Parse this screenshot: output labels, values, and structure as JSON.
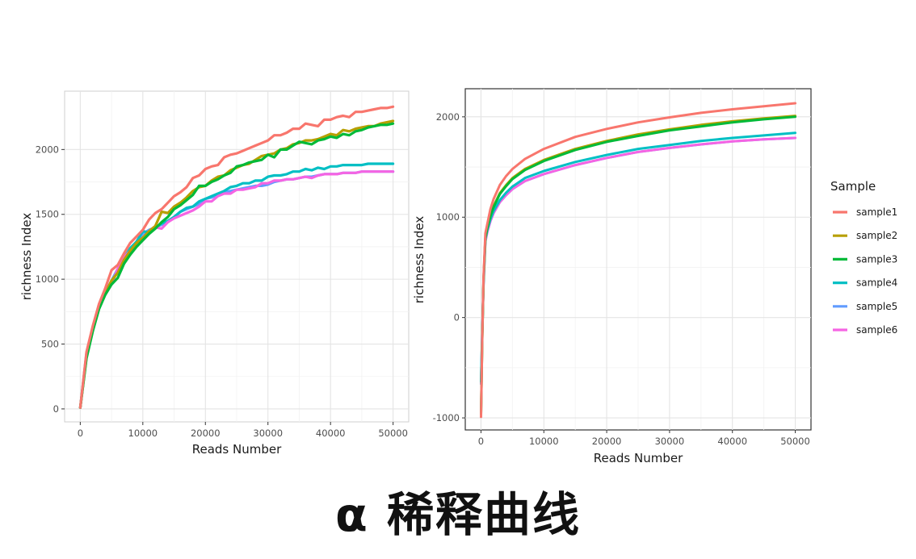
{
  "caption": "α 稀释曲线",
  "legend": {
    "title": "Sample",
    "items": [
      {
        "label": "sample1",
        "color": "#F8766D"
      },
      {
        "label": "sample2",
        "color": "#B79F00"
      },
      {
        "label": "sample3",
        "color": "#00BA38"
      },
      {
        "label": "sample4",
        "color": "#00BFC4"
      },
      {
        "label": "sample5",
        "color": "#619CFF"
      },
      {
        "label": "sample6",
        "color": "#F564E3"
      }
    ]
  },
  "chart_data": [
    {
      "type": "line",
      "xlabel": "Reads Number",
      "ylabel": "richness Index",
      "xlim": [
        -2500,
        52500
      ],
      "ylim": [
        -100,
        2450
      ],
      "xticks": [
        0,
        10000,
        20000,
        30000,
        40000,
        50000
      ],
      "xtick_labels": [
        "0",
        "10000",
        "20000",
        "30000",
        "40000",
        "50000"
      ],
      "yticks": [
        0,
        500,
        1000,
        1500,
        2000
      ],
      "ytick_labels": [
        "0",
        "500",
        "1000",
        "1500",
        "2000"
      ],
      "grid": true,
      "x": [
        0,
        1000,
        2000,
        3000,
        4000,
        5000,
        6000,
        7000,
        8000,
        9000,
        10000,
        11000,
        12000,
        13000,
        14000,
        15000,
        16000,
        17000,
        18000,
        19000,
        20000,
        21000,
        22000,
        23000,
        24000,
        25000,
        26000,
        27000,
        28000,
        29000,
        30000,
        31000,
        32000,
        33000,
        34000,
        35000,
        36000,
        37000,
        38000,
        39000,
        40000,
        41000,
        42000,
        43000,
        44000,
        45000,
        46000,
        47000,
        48000,
        49000,
        50000
      ],
      "series": [
        {
          "name": "sample1",
          "values": [
            10,
            440,
            640,
            810,
            930,
            1070,
            1110,
            1200,
            1280,
            1330,
            1380,
            1460,
            1510,
            1540,
            1590,
            1640,
            1670,
            1710,
            1780,
            1800,
            1850,
            1870,
            1880,
            1940,
            1960,
            1970,
            1990,
            2010,
            2030,
            2050,
            2070,
            2110,
            2110,
            2130,
            2160,
            2160,
            2200,
            2190,
            2180,
            2230,
            2230,
            2250,
            2260,
            2250,
            2290,
            2290,
            2300,
            2310,
            2320,
            2320,
            2330
          ]
        },
        {
          "name": "sample2",
          "values": [
            10,
            400,
            610,
            790,
            890,
            990,
            1050,
            1150,
            1220,
            1280,
            1320,
            1370,
            1410,
            1520,
            1510,
            1560,
            1590,
            1630,
            1680,
            1710,
            1720,
            1760,
            1790,
            1800,
            1840,
            1860,
            1880,
            1890,
            1920,
            1950,
            1960,
            1970,
            2000,
            2010,
            2040,
            2050,
            2070,
            2070,
            2080,
            2100,
            2120,
            2110,
            2150,
            2140,
            2160,
            2170,
            2180,
            2180,
            2200,
            2210,
            2220
          ]
        },
        {
          "name": "sample3",
          "values": [
            10,
            390,
            600,
            770,
            880,
            960,
            1010,
            1120,
            1190,
            1250,
            1300,
            1350,
            1390,
            1440,
            1480,
            1540,
            1570,
            1610,
            1650,
            1720,
            1720,
            1750,
            1770,
            1800,
            1820,
            1870,
            1880,
            1900,
            1910,
            1920,
            1960,
            1940,
            2000,
            2000,
            2030,
            2060,
            2050,
            2040,
            2070,
            2080,
            2100,
            2090,
            2120,
            2110,
            2140,
            2150,
            2170,
            2180,
            2190,
            2190,
            2200
          ]
        },
        {
          "name": "sample4",
          "values": [
            10,
            430,
            630,
            790,
            900,
            970,
            1070,
            1160,
            1240,
            1290,
            1370,
            1360,
            1400,
            1430,
            1450,
            1480,
            1520,
            1550,
            1560,
            1600,
            1620,
            1640,
            1660,
            1680,
            1710,
            1720,
            1740,
            1740,
            1760,
            1760,
            1790,
            1800,
            1800,
            1810,
            1830,
            1830,
            1850,
            1840,
            1860,
            1850,
            1870,
            1870,
            1880,
            1880,
            1880,
            1880,
            1890,
            1890,
            1890,
            1890,
            1890
          ]
        },
        {
          "name": "sample5",
          "values": [
            10,
            410,
            620,
            790,
            900,
            990,
            1080,
            1170,
            1230,
            1290,
            1350,
            1380,
            1400,
            1420,
            1440,
            1480,
            1520,
            1540,
            1560,
            1580,
            1620,
            1630,
            1650,
            1670,
            1680,
            1690,
            1700,
            1710,
            1720,
            1720,
            1730,
            1750,
            1760,
            1770,
            1770,
            1780,
            1790,
            1790,
            1800,
            1810,
            1810,
            1810,
            1820,
            1820,
            1820,
            1830,
            1830,
            1830,
            1830,
            1830,
            1830
          ]
        },
        {
          "name": "sample6",
          "values": [
            10,
            420,
            620,
            780,
            880,
            960,
            1080,
            1170,
            1220,
            1260,
            1300,
            1350,
            1400,
            1390,
            1440,
            1470,
            1490,
            1510,
            1530,
            1560,
            1600,
            1600,
            1640,
            1660,
            1660,
            1690,
            1690,
            1700,
            1710,
            1740,
            1740,
            1760,
            1760,
            1770,
            1770,
            1780,
            1790,
            1780,
            1800,
            1810,
            1810,
            1810,
            1820,
            1820,
            1820,
            1830,
            1830,
            1830,
            1830,
            1830,
            1830
          ]
        }
      ]
    },
    {
      "type": "line",
      "xlabel": "Reads Number",
      "ylabel": "richness Index",
      "xlim": [
        -2500,
        52500
      ],
      "ylim": [
        -1120,
        2280
      ],
      "xticks": [
        0,
        10000,
        20000,
        30000,
        40000,
        50000
      ],
      "xtick_labels": [
        "0",
        "10000",
        "20000",
        "30000",
        "40000",
        "50000"
      ],
      "yticks": [
        -1000,
        0,
        1000,
        2000
      ],
      "ytick_labels": [
        "-1000",
        "0",
        "1000",
        "2000"
      ],
      "grid": true,
      "x": [
        0,
        200,
        400,
        700,
        1000,
        1500,
        2000,
        3000,
        4000,
        5000,
        7000,
        10000,
        15000,
        20000,
        25000,
        30000,
        35000,
        40000,
        45000,
        50000
      ],
      "series": [
        {
          "name": "sample1",
          "values": [
            -990,
            -200,
            400,
            840,
            930,
            1080,
            1180,
            1320,
            1410,
            1480,
            1580,
            1680,
            1800,
            1880,
            1945,
            1995,
            2040,
            2075,
            2105,
            2135
          ]
        },
        {
          "name": "sample2",
          "values": [
            -960,
            -220,
            380,
            800,
            900,
            1020,
            1110,
            1240,
            1320,
            1390,
            1480,
            1570,
            1680,
            1760,
            1825,
            1875,
            1920,
            1955,
            1985,
            2010
          ]
        },
        {
          "name": "sample3",
          "values": [
            -960,
            -220,
            370,
            790,
            890,
            1010,
            1100,
            1230,
            1310,
            1380,
            1470,
            1560,
            1670,
            1750,
            1810,
            1865,
            1905,
            1945,
            1975,
            2000
          ]
        },
        {
          "name": "sample4",
          "values": [
            -640,
            -150,
            350,
            780,
            870,
            980,
            1060,
            1170,
            1245,
            1305,
            1390,
            1460,
            1550,
            1620,
            1680,
            1720,
            1760,
            1790,
            1815,
            1840
          ]
        },
        {
          "name": "sample5",
          "values": [
            -660,
            -160,
            330,
            760,
            850,
            960,
            1040,
            1150,
            1220,
            1280,
            1360,
            1430,
            1520,
            1590,
            1650,
            1690,
            1725,
            1755,
            1775,
            1790
          ]
        },
        {
          "name": "sample6",
          "values": [
            -650,
            -160,
            330,
            760,
            850,
            960,
            1040,
            1150,
            1220,
            1280,
            1360,
            1430,
            1520,
            1590,
            1650,
            1690,
            1725,
            1755,
            1775,
            1790
          ]
        }
      ]
    }
  ]
}
